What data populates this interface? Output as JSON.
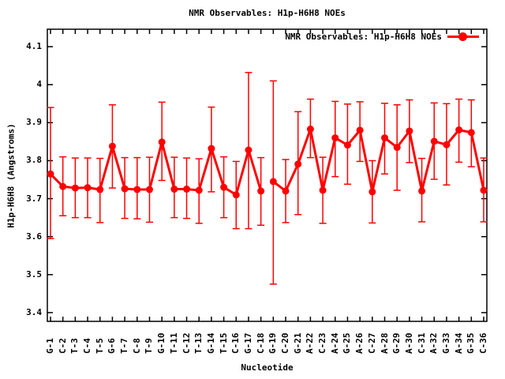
{
  "page": {
    "title": "NMR Observables: H1p-H6H8 NOEs"
  },
  "chart_data": {
    "type": "line",
    "title": "NMR Observables: H1p-H6H8 NOEs",
    "xlabel": "Nucleotide",
    "ylabel": "H1p-H6H8 (Angstroms)",
    "ylim": [
      3.377,
      4.146
    ],
    "grid": false,
    "legend_position": "top-right-inside",
    "yticks": {
      "values": [
        3.4,
        3.5,
        3.6,
        3.7,
        3.8,
        3.9,
        4.0,
        4.1
      ],
      "labels": [
        "3.4",
        "3.5",
        "3.6",
        "3.7",
        "3.8",
        "3.9",
        "4",
        "4.1"
      ]
    },
    "categories": [
      "G-1",
      "C-2",
      "T-3",
      "C-4",
      "T-5",
      "G-6",
      "T-7",
      "C-8",
      "T-9",
      "G-10",
      "T-11",
      "C-12",
      "T-13",
      "G-14",
      "T-15",
      "C-16",
      "G-17",
      "C-18",
      "G-19",
      "C-20",
      "G-21",
      "A-22",
      "C-23",
      "A-24",
      "G-25",
      "A-26",
      "C-27",
      "A-28",
      "G-29",
      "A-30",
      "C-31",
      "A-32",
      "G-33",
      "A-34",
      "G-35",
      "C-36"
    ],
    "series": [
      {
        "name": "NMR Observables: H1p-H6H8 NOEs",
        "color": "#ff0000",
        "marker": "filled-circle",
        "values": [
          3.765,
          3.732,
          3.728,
          3.729,
          3.724,
          3.838,
          3.726,
          3.724,
          3.724,
          3.849,
          3.725,
          3.725,
          3.722,
          3.832,
          3.73,
          3.71,
          3.828,
          3.72,
          3.745,
          3.72,
          3.791,
          3.883,
          3.722,
          3.86,
          3.841,
          3.88,
          3.718,
          3.86,
          3.835,
          3.878,
          3.72,
          3.851,
          3.842,
          3.881,
          3.874,
          3.722
        ],
        "err_low": [
          3.595,
          3.655,
          3.65,
          3.65,
          3.637,
          3.728,
          3.648,
          3.647,
          3.638,
          3.748,
          3.65,
          3.648,
          3.635,
          3.718,
          3.65,
          3.621,
          3.621,
          3.63,
          3.475,
          3.637,
          3.658,
          3.808,
          3.635,
          3.758,
          3.738,
          3.798,
          3.636,
          3.765,
          3.722,
          3.795,
          3.639,
          3.751,
          3.736,
          3.796,
          3.784,
          3.639
        ],
        "err_high": [
          3.94,
          3.81,
          3.807,
          3.807,
          3.806,
          3.947,
          3.808,
          3.808,
          3.809,
          3.954,
          3.809,
          3.807,
          3.805,
          3.941,
          3.81,
          3.798,
          4.032,
          3.808,
          4.01,
          3.803,
          3.929,
          3.962,
          3.809,
          3.956,
          3.949,
          3.955,
          3.8,
          3.951,
          3.947,
          3.96,
          3.806,
          3.952,
          3.95,
          3.962,
          3.96,
          3.807
        ],
        "segments": [
          [
            0,
            17
          ],
          [
            18,
            35
          ]
        ]
      }
    ],
    "colors": {
      "series": "#ff0000",
      "axis": "#000000",
      "text": "#000000",
      "background": "#ffffff"
    }
  }
}
